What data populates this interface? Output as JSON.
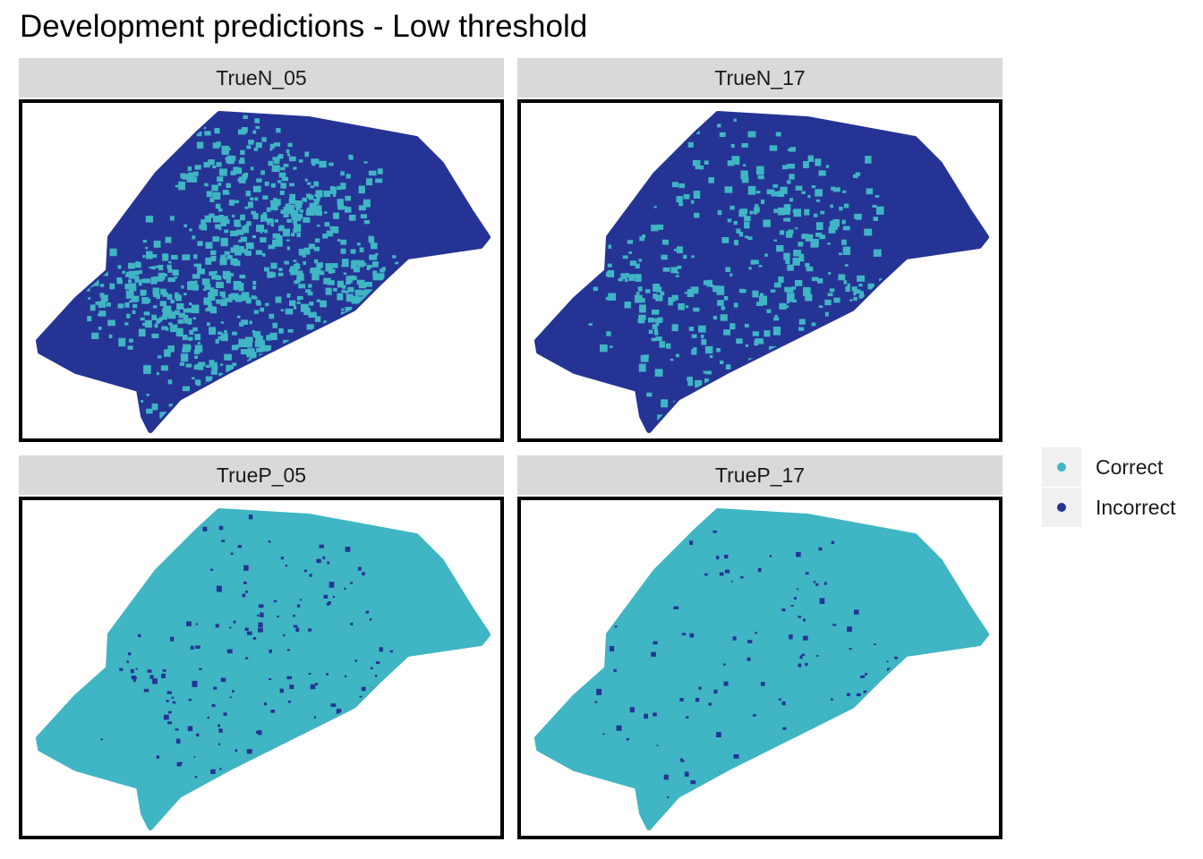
{
  "title": "Development predictions - Low threshold",
  "colors": {
    "correct": "#40b5c4",
    "incorrect": "#253494"
  },
  "legend": {
    "items": [
      {
        "label": "Correct",
        "color": "#40b5c4"
      },
      {
        "label": "Incorrect",
        "color": "#253494"
      }
    ]
  },
  "facets": [
    {
      "label": "TrueN_05",
      "base": "incorrect",
      "speckle": "correct",
      "density": "high"
    },
    {
      "label": "TrueN_17",
      "base": "incorrect",
      "speckle": "correct",
      "density": "medium"
    },
    {
      "label": "TrueP_05",
      "base": "correct",
      "speckle": "incorrect",
      "density": "low"
    },
    {
      "label": "TrueP_17",
      "base": "correct",
      "speckle": "incorrect",
      "density": "very-low"
    }
  ]
}
